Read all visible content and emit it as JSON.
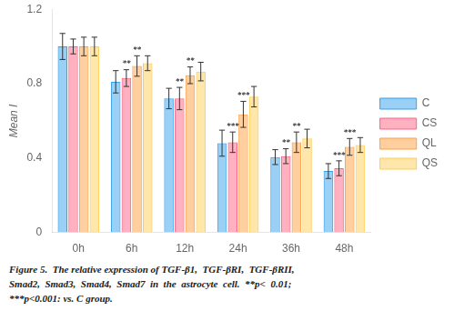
{
  "chart_data": {
    "type": "bar",
    "categories": [
      "0h",
      "6h",
      "12h",
      "24h",
      "36h",
      "48h"
    ],
    "series": [
      {
        "name": "C",
        "values": [
          1.0,
          0.81,
          0.72,
          0.48,
          0.405,
          0.33
        ],
        "errors": [
          0.07,
          0.06,
          0.055,
          0.07,
          0.04,
          0.04
        ]
      },
      {
        "name": "CS",
        "values": [
          1.0,
          0.83,
          0.72,
          0.485,
          0.41,
          0.345
        ],
        "errors": [
          0.04,
          0.045,
          0.06,
          0.055,
          0.04,
          0.04
        ],
        "significance": [
          null,
          "**",
          "**",
          "***",
          "**",
          "***"
        ]
      },
      {
        "name": "QL",
        "values": [
          1.0,
          0.895,
          0.845,
          0.635,
          0.485,
          0.46
        ],
        "errors": [
          0.05,
          0.055,
          0.045,
          0.07,
          0.055,
          0.045
        ],
        "significance": [
          null,
          "**",
          "**",
          "***",
          "**",
          "***"
        ]
      },
      {
        "name": "QS",
        "values": [
          1.0,
          0.91,
          0.865,
          0.73,
          0.505,
          0.47
        ],
        "errors": [
          0.05,
          0.04,
          0.05,
          0.055,
          0.05,
          0.04
        ]
      }
    ],
    "ylabel": "Mean I",
    "ylim": [
      0,
      1.2
    ],
    "yticks": [
      0,
      0.4,
      0.8,
      1.2
    ],
    "grid": false,
    "legend": "right",
    "caption": [
      "Figure 5.  The relative expression of TGF-β1,  TGF-βRI,  TGF-βRII,",
      "Smad2,  Smad3,  Smad4,  Smad7  in  the  astrocyte  cell.  **p<  0.01;",
      "***p<0.001: vs. C group."
    ]
  }
}
